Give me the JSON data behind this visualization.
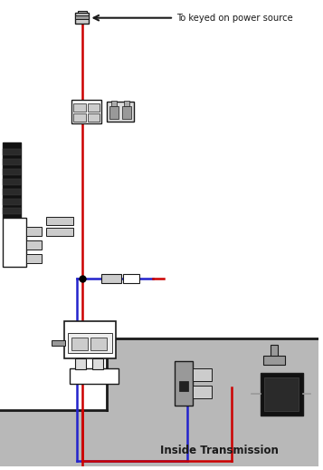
{
  "bg_color": "#ffffff",
  "gray_color": "#b8b8b8",
  "red_wire": "#cc0000",
  "blue_wire": "#2222cc",
  "blk": "#1a1a1a",
  "wht": "#ffffff",
  "lgray": "#cccccc",
  "mgray": "#999999",
  "dgray": "#555555",
  "title_annotation": "To keyed on power source",
  "bottom_text": "Inside Transmission",
  "fig_w": 3.57,
  "fig_h": 5.18,
  "dpi": 100
}
